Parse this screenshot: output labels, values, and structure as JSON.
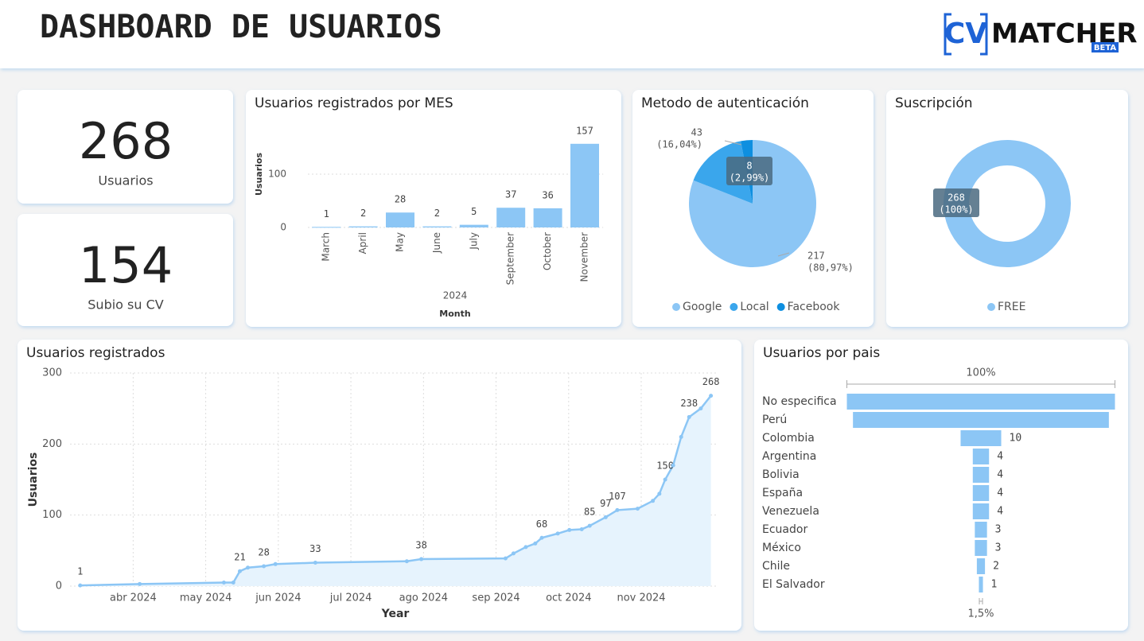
{
  "header": {
    "title": "DASHBOARD DE USUARIOS",
    "logo_left": "CV",
    "logo_right": "MATCHER",
    "logo_badge": "BETA"
  },
  "kpis": [
    {
      "value": 268,
      "label": "Usuarios"
    },
    {
      "value": 154,
      "label": "Subio su CV"
    }
  ],
  "chart_data": [
    {
      "type": "bar",
      "title": "Usuarios registrados por MES",
      "categories": [
        "March",
        "April",
        "May",
        "June",
        "July",
        "September",
        "October",
        "November"
      ],
      "values": [
        1,
        2,
        28,
        2,
        5,
        37,
        36,
        157
      ],
      "color": "#8cc6f5",
      "ylim": [
        0,
        200
      ],
      "yticks": [
        0,
        100
      ],
      "grid": true,
      "y_label": "Usuarios",
      "x_group": "2024",
      "x_label": "Month"
    },
    {
      "type": "pie",
      "title": "Metodo de autenticación",
      "categories": [
        "Google",
        "Local",
        "Facebook"
      ],
      "values": [
        217,
        43,
        8
      ],
      "percent_labels": [
        "(80,97%)",
        "(16,04%)",
        "(2,99%)"
      ],
      "colors": [
        "#8cc6f5",
        "#3aa6ec",
        "#0e8fe0"
      ],
      "legend": "bottom"
    },
    {
      "type": "donut",
      "title": "Suscripción",
      "categories": [
        "FREE"
      ],
      "values": [
        268
      ],
      "percent_labels": [
        "(100%)"
      ],
      "colors": [
        "#8cc6f5"
      ],
      "legend": "bottom"
    },
    {
      "type": "area",
      "title": "Usuarios registrados",
      "x_label": "Year",
      "y_label": "Usuarios",
      "x": [
        3.27,
        4.09,
        5.25,
        5.38,
        5.47,
        5.58,
        5.8,
        5.96,
        6.51,
        7.77,
        7.97,
        9.13,
        9.24,
        9.41,
        9.54,
        9.63,
        9.85,
        10.01,
        10.18,
        10.29,
        10.51,
        10.67,
        10.95,
        11.16,
        11.25,
        11.33,
        11.44,
        11.55,
        11.66,
        11.82,
        11.96
      ],
      "values": [
        1,
        3,
        5,
        5,
        21,
        26,
        28,
        31,
        33,
        35,
        38,
        39,
        46,
        55,
        60,
        68,
        74,
        79,
        80,
        85,
        97,
        107,
        109,
        120,
        130,
        150,
        170,
        210,
        238,
        250,
        268
      ],
      "value_labels": [
        "1",
        null,
        null,
        null,
        "21",
        null,
        "28",
        null,
        "33",
        null,
        "38",
        null,
        null,
        null,
        null,
        "68",
        null,
        null,
        null,
        "85",
        "97",
        "107",
        null,
        null,
        null,
        "150",
        null,
        null,
        "238",
        null,
        "268"
      ],
      "color": "#8cc6f5",
      "fill": "#e6f3fd",
      "xlim": [
        3.13,
        12.03
      ],
      "ylim": [
        0,
        300
      ],
      "yticks": [
        0,
        100,
        200,
        300
      ],
      "grid": true,
      "xticks": [
        {
          "value": 4,
          "label": "abr 2024"
        },
        {
          "value": 5,
          "label": "may 2024"
        },
        {
          "value": 6,
          "label": "jun 2024"
        },
        {
          "value": 7,
          "label": "jul 2024"
        },
        {
          "value": 8,
          "label": "ago 2024"
        },
        {
          "value": 9,
          "label": "sep 2024"
        },
        {
          "value": 10,
          "label": "oct 2024"
        },
        {
          "value": 11,
          "label": "nov 2024"
        }
      ]
    },
    {
      "type": "funnel",
      "title": "Usuarios por pais",
      "categories": [
        "No especifica",
        "Perú",
        "Colombia",
        "Argentina",
        "Bolivia",
        "España",
        "Venezuela",
        "Ecuador",
        "México",
        "Chile",
        "El Salvador"
      ],
      "values": [
        66,
        63,
        10,
        4,
        4,
        4,
        4,
        3,
        3,
        2,
        1
      ],
      "value_labels": [
        null,
        null,
        "10",
        "4",
        "4",
        "4",
        "4",
        "3",
        "3",
        "2",
        "1"
      ],
      "first_label": "100%",
      "last_label": "1,5%",
      "color": "#8cc6f5"
    }
  ]
}
